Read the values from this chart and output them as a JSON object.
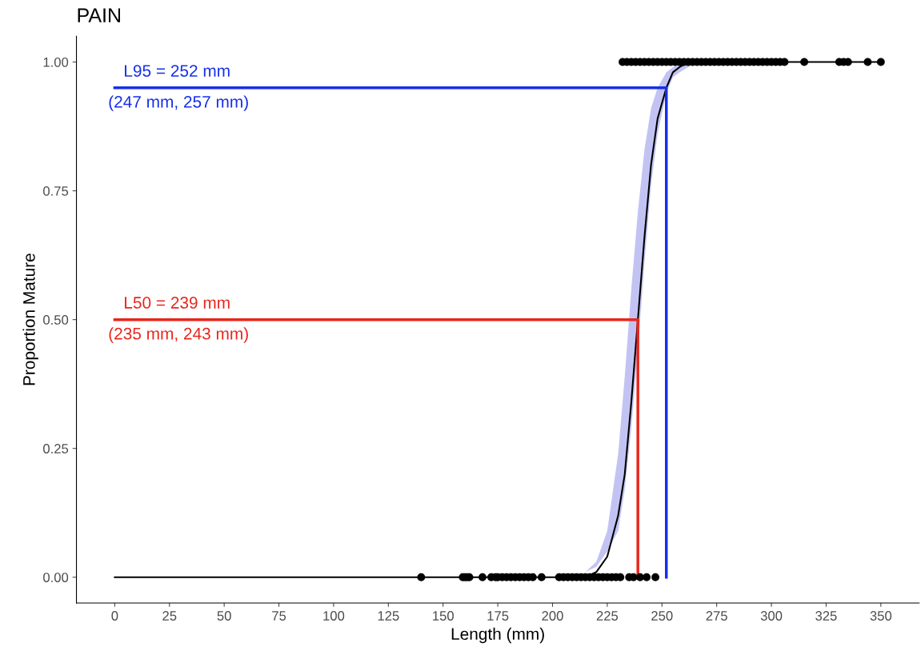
{
  "chart_data": {
    "type": "scatter",
    "title": "PAIN",
    "xlabel": "Length (mm)",
    "ylabel": "Proportion Mature",
    "xlim": [
      -17.5,
      367.5
    ],
    "ylim": [
      -0.05,
      1.05
    ],
    "xticks": [
      0,
      25,
      50,
      75,
      100,
      125,
      150,
      175,
      200,
      225,
      250,
      275,
      300,
      325,
      350
    ],
    "yticks": [
      {
        "value": 0,
        "label": "0.00"
      },
      {
        "value": 0.25,
        "label": "0.25"
      },
      {
        "value": 0.5,
        "label": "0.50"
      },
      {
        "value": 0.75,
        "label": "0.75"
      },
      {
        "value": 1,
        "label": "1.00"
      }
    ],
    "grid": false,
    "legend": false,
    "series": [
      {
        "type": "line",
        "color": "#000000",
        "x": [
          0,
          200,
          210,
          215,
          220,
          225,
          230,
          233,
          236,
          239,
          242,
          245,
          248,
          252,
          255,
          258,
          262,
          266,
          270,
          350
        ],
        "values": [
          0,
          0,
          0,
          0,
          0.01,
          0.04,
          0.12,
          0.2,
          0.34,
          0.5,
          0.66,
          0.8,
          0.89,
          0.95,
          0.98,
          0.99,
          1,
          1,
          1,
          1
        ],
        "lower": [
          0,
          0,
          0,
          0.01,
          0.02,
          0.05,
          0.09,
          0.17,
          0.29,
          0.44,
          0.61,
          0.76,
          0.86,
          0.94,
          0.97,
          0.98,
          0.99,
          1,
          1,
          1
        ],
        "upper": [
          0,
          0,
          0,
          0.01,
          0.03,
          0.09,
          0.24,
          0.39,
          0.56,
          0.71,
          0.83,
          0.91,
          0.95,
          0.98,
          0.99,
          1,
          1,
          1,
          1,
          1
        ]
      },
      {
        "color": "#000000",
        "marker": "circle",
        "x": [
          140,
          159,
          160,
          161,
          162,
          168,
          172,
          174,
          175,
          177,
          179,
          181,
          183,
          185,
          187,
          189,
          191,
          195,
          203,
          205,
          207,
          209,
          211,
          213,
          215,
          217,
          219,
          221,
          223,
          225,
          227,
          229,
          231,
          235,
          237,
          240,
          243,
          247,
          232,
          234,
          236,
          238,
          240,
          242,
          244,
          246,
          248,
          250,
          252,
          254,
          256,
          258,
          260,
          262,
          264,
          266,
          268,
          270,
          272,
          274,
          276,
          278,
          280,
          282,
          284,
          286,
          288,
          290,
          292,
          294,
          296,
          298,
          300,
          302,
          304,
          306,
          315,
          331,
          333,
          335,
          344,
          350
        ],
        "values": [
          0,
          0,
          0,
          0,
          0,
          0,
          0,
          0,
          0,
          0,
          0,
          0,
          0,
          0,
          0,
          0,
          0,
          0,
          0,
          0,
          0,
          0,
          0,
          0,
          0,
          0,
          0,
          0,
          0,
          0,
          0,
          0,
          0,
          0,
          0,
          0,
          0,
          0,
          1,
          1,
          1,
          1,
          1,
          1,
          1,
          1,
          1,
          1,
          1,
          1,
          1,
          1,
          1,
          1,
          1,
          1,
          1,
          1,
          1,
          1,
          1,
          1,
          1,
          1,
          1,
          1,
          1,
          1,
          1,
          1,
          1,
          1,
          1,
          1,
          1,
          1,
          1,
          1,
          1,
          1,
          1,
          1
        ]
      },
      {
        "type": "line",
        "name": "L50 = 239 mm",
        "color": "#e8261c",
        "x": [
          0,
          239,
          239
        ],
        "values": [
          0.5,
          0.5,
          0
        ]
      },
      {
        "type": "line",
        "name": "L95 = 252 mm",
        "color": "#1530e8",
        "x": [
          0,
          252,
          252
        ],
        "values": [
          0.95,
          0.95,
          0
        ]
      }
    ],
    "annotations": [
      "(235 mm, 243 mm)",
      "(247 mm, 257 mm)"
    ]
  }
}
